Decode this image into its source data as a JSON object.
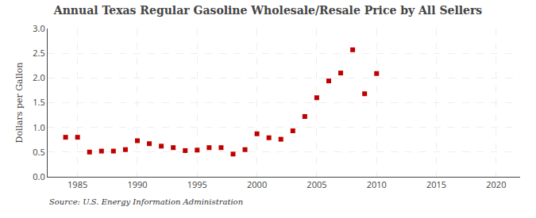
{
  "chart_data": {
    "type": "scatter",
    "title": "Annual Texas Regular Gasoline Wholesale/Resale Price by All Sellers",
    "ylabel": "Dollars per Gallon",
    "annotations": [
      "Source: U.S. Energy Information Administration"
    ],
    "x": [
      1984,
      1985,
      1986,
      1987,
      1988,
      1989,
      1990,
      1991,
      1992,
      1993,
      1994,
      1995,
      1996,
      1997,
      1998,
      1999,
      2000,
      2001,
      2002,
      2003,
      2004,
      2005,
      2006,
      2007,
      2008,
      2009,
      2010
    ],
    "values": [
      0.8,
      0.8,
      0.5,
      0.52,
      0.52,
      0.55,
      0.73,
      0.67,
      0.62,
      0.59,
      0.53,
      0.54,
      0.59,
      0.59,
      0.46,
      0.55,
      0.87,
      0.79,
      0.76,
      0.93,
      1.22,
      1.6,
      1.94,
      2.1,
      2.57,
      1.68,
      2.09
    ],
    "color": "#c00000",
    "marker": "square",
    "xlim": [
      1982.5,
      2022
    ],
    "ylim": [
      0.0,
      3.0
    ],
    "xticks": [
      1985,
      1990,
      1995,
      2000,
      2005,
      2010,
      2015,
      2020
    ],
    "yticks": [
      {
        "value": 0.0,
        "label": "0.0"
      },
      0.5,
      {
        "value": 1.0,
        "label": "1.0"
      },
      1.5,
      {
        "value": 2.0,
        "label": "2.0"
      },
      2.5,
      {
        "value": 3.0,
        "label": "3.0"
      }
    ],
    "grid": true
  }
}
